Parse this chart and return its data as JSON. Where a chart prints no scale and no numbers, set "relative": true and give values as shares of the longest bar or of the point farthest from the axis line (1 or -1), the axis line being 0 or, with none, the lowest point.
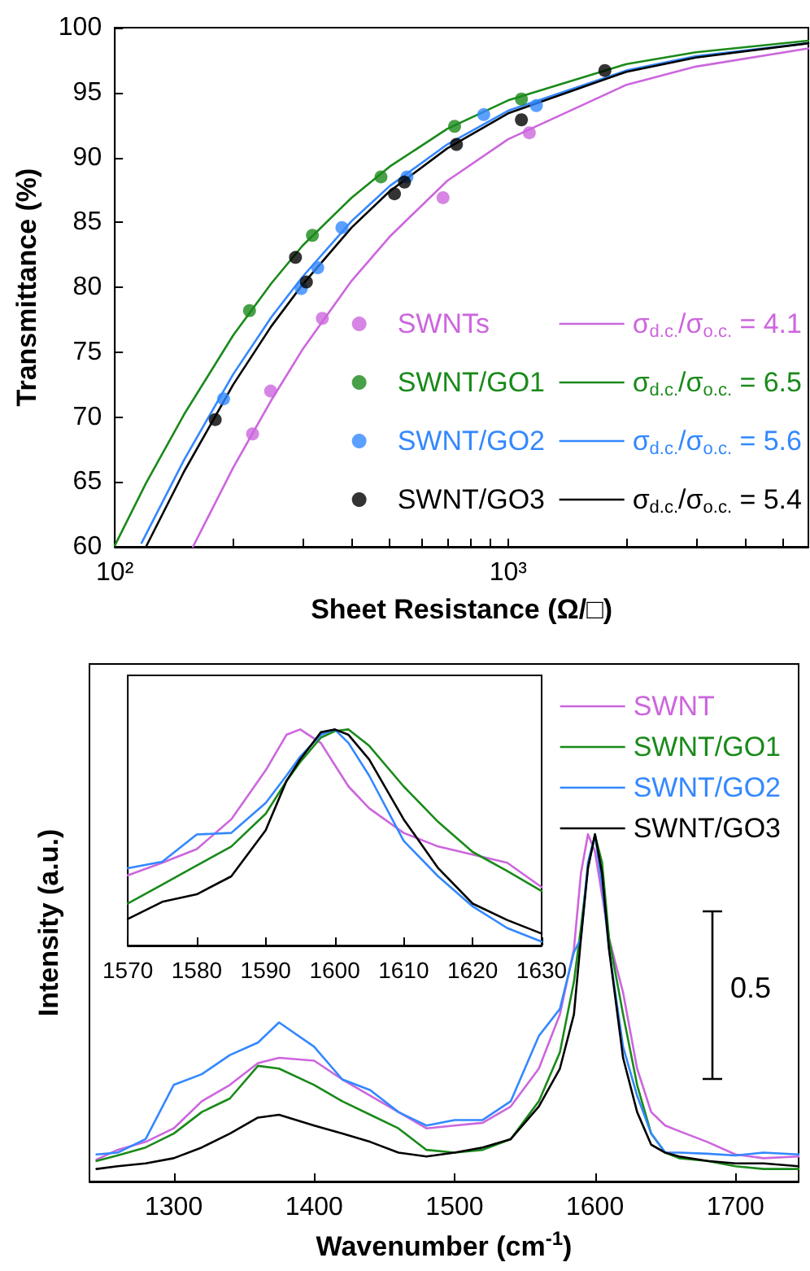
{
  "chart_data": [
    {
      "type": "scatter",
      "xlabel": "Sheet Resistance (Ω/□)",
      "ylabel": "Transmittance (%)",
      "log": "x",
      "xlim": [
        100,
        5800
      ],
      "xticks": [
        {
          "value": 100,
          "label": "10²"
        },
        {
          "value": 200,
          "label": null
        },
        {
          "value": 300,
          "label": null
        },
        {
          "value": 400,
          "label": null
        },
        {
          "value": 500,
          "label": null
        },
        {
          "value": 600,
          "label": null
        },
        {
          "value": 700,
          "label": null
        },
        {
          "value": 800,
          "label": null
        },
        {
          "value": 900,
          "label": null
        },
        {
          "value": 1000,
          "label": "10³"
        },
        {
          "value": 2000,
          "label": null
        },
        {
          "value": 3000,
          "label": null
        },
        {
          "value": 4000,
          "label": null
        },
        {
          "value": 5000,
          "label": null
        }
      ],
      "ylim": [
        60,
        100
      ],
      "yticks": [
        60,
        65,
        70,
        75,
        80,
        85,
        90,
        95,
        100
      ],
      "legend": "bottom right",
      "marker": "circle",
      "series": [
        {
          "name": "SWNTs",
          "color": "#cc66dd",
          "x": [
            224,
            249,
            337,
            683,
            1132
          ],
          "values": [
            68.7,
            72.0,
            77.6,
            86.9,
            91.9
          ]
        },
        {
          "name": "SWNT/GO1",
          "color": "#1a8a1a",
          "x": [
            220,
            318,
            475,
            731,
            1081
          ],
          "values": [
            78.2,
            84.0,
            88.5,
            92.4,
            94.5
          ]
        },
        {
          "name": "SWNT/GO2",
          "color": "#3388ff",
          "x": [
            189,
            298,
            328,
            378,
            553,
            867,
            1180
          ],
          "values": [
            71.4,
            79.9,
            81.5,
            84.6,
            88.5,
            93.3,
            94.0
          ]
        },
        {
          "name": "SWNT/GO3",
          "color": "#000000",
          "x": [
            180,
            288,
            307,
            514,
            545,
            739,
            1081,
            1762
          ],
          "values": [
            69.8,
            82.3,
            80.4,
            87.2,
            88.1,
            91.0,
            92.9,
            96.7
          ]
        },
        {
          "type": "line",
          "marker": "none",
          "name": "σ$_{d.c.}$/σ$_{o.c.}$ = 4.1",
          "color": "#cc66dd",
          "x": [
            158,
            200,
            250,
            300,
            400,
            500,
            700,
            1000,
            2000,
            3000,
            5800
          ],
          "values": [
            60.0,
            66.1,
            71.3,
            75.2,
            80.5,
            83.9,
            88.2,
            91.4,
            95.6,
            97.0,
            98.4
          ]
        },
        {
          "type": "line",
          "marker": "none",
          "name": "σ$_{d.c.}$/σ$_{o.c.}$ = 6.5",
          "color": "#1a8a1a",
          "x": [
            100,
            120,
            150,
            200,
            250,
            300,
            400,
            500,
            700,
            1000,
            2000,
            3000,
            5800
          ],
          "values": [
            60.1,
            64.9,
            70.2,
            76.3,
            80.3,
            83.2,
            86.9,
            89.3,
            92.2,
            94.4,
            97.2,
            98.1,
            99.0
          ]
        },
        {
          "type": "line",
          "marker": "none",
          "name": "σ$_{d.c.}$/σ$_{o.c.}$ = 5.6",
          "color": "#3388ff",
          "x": [
            117,
            150,
            200,
            250,
            300,
            400,
            500,
            700,
            1000,
            2000,
            3000,
            5800
          ],
          "values": [
            60.3,
            66.7,
            73.3,
            77.7,
            80.8,
            85.1,
            87.8,
            91.0,
            93.6,
            96.7,
            97.8,
            98.8
          ]
        },
        {
          "type": "line",
          "marker": "none",
          "name": "σ$_{d.c.}$/σ$_{o.c.}$ = 5.4",
          "color": "#000000",
          "x": [
            120,
            150,
            200,
            250,
            300,
            400,
            500,
            700,
            1000,
            2000,
            3000,
            5800
          ],
          "values": [
            60.0,
            65.8,
            72.5,
            77.0,
            80.2,
            84.6,
            87.4,
            90.7,
            93.4,
            96.6,
            97.7,
            98.8
          ]
        }
      ]
    },
    {
      "type": "line",
      "xlabel": "Wavenumber (cm$^{-1}$)",
      "ylabel": "Intensity (a.u.)",
      "relative": true,
      "xlim": [
        1240,
        1745
      ],
      "xticks": [
        1300,
        1400,
        1500,
        1600,
        1700
      ],
      "legend": "top right",
      "marker": "none",
      "annotations": [
        "0.5"
      ],
      "x": [
        1245,
        1260,
        1280,
        1300,
        1320,
        1340,
        1360,
        1375,
        1400,
        1420,
        1440,
        1460,
        1480,
        1500,
        1520,
        1540,
        1560,
        1575,
        1585,
        1590,
        1595,
        1600,
        1605,
        1610,
        1620,
        1630,
        1640,
        1650,
        1660,
        1680,
        1700,
        1720,
        1745
      ],
      "series": [
        {
          "name": "SWNT",
          "color": "#cc66dd",
          "values": [
            0.063,
            0.091,
            0.114,
            0.153,
            0.231,
            0.278,
            0.341,
            0.356,
            0.348,
            0.294,
            0.247,
            0.2,
            0.153,
            0.161,
            0.169,
            0.216,
            0.325,
            0.481,
            0.669,
            0.888,
            1.0,
            0.95,
            0.825,
            0.7,
            0.544,
            0.325,
            0.2,
            0.161,
            0.145,
            0.114,
            0.078,
            0.067,
            0.072
          ]
        },
        {
          "name": "SWNT/GO1",
          "color": "#1a8a1a",
          "values": [
            0.059,
            0.075,
            0.098,
            0.138,
            0.2,
            0.239,
            0.333,
            0.325,
            0.278,
            0.231,
            0.192,
            0.153,
            0.091,
            0.083,
            0.091,
            0.122,
            0.231,
            0.372,
            0.575,
            0.731,
            0.903,
            0.997,
            0.919,
            0.7,
            0.481,
            0.278,
            0.138,
            0.083,
            0.067,
            0.059,
            0.044,
            0.036,
            0.036
          ]
        },
        {
          "name": "SWNT/GO2",
          "color": "#3388ff",
          "values": [
            0.078,
            0.083,
            0.122,
            0.278,
            0.309,
            0.364,
            0.4,
            0.458,
            0.388,
            0.294,
            0.263,
            0.2,
            0.161,
            0.177,
            0.177,
            0.231,
            0.419,
            0.497,
            0.66,
            0.7,
            0.919,
            0.997,
            0.856,
            0.669,
            0.388,
            0.247,
            0.138,
            0.083,
            0.083,
            0.08,
            0.075,
            0.083,
            0.078
          ]
        },
        {
          "name": "SWNT/GO3",
          "color": "#000000",
          "values": [
            0.036,
            0.044,
            0.052,
            0.067,
            0.098,
            0.138,
            0.184,
            0.192,
            0.161,
            0.138,
            0.114,
            0.083,
            0.072,
            0.083,
            0.098,
            0.122,
            0.216,
            0.325,
            0.481,
            0.7,
            0.903,
            1.0,
            0.888,
            0.669,
            0.356,
            0.2,
            0.106,
            0.083,
            0.072,
            0.059,
            0.052,
            0.052,
            0.044
          ]
        }
      ]
    },
    {
      "type": "line",
      "relative": true,
      "xlim": [
        1570,
        1630
      ],
      "xticks": [
        1570,
        1580,
        1590,
        1600,
        1610,
        1620,
        1630
      ],
      "marker": "none",
      "x": [
        1570,
        1575,
        1580,
        1585,
        1590,
        1593,
        1595,
        1598,
        1600,
        1602,
        1605,
        1610,
        1615,
        1620,
        1625,
        1630
      ],
      "series": [
        {
          "color": "#cc66dd",
          "values": [
            0.325,
            0.383,
            0.446,
            0.584,
            0.811,
            0.975,
            1.0,
            0.937,
            0.836,
            0.736,
            0.635,
            0.521,
            0.458,
            0.421,
            0.383,
            0.27
          ]
        },
        {
          "color": "#1a8a1a",
          "values": [
            0.194,
            0.282,
            0.37,
            0.458,
            0.61,
            0.761,
            0.849,
            0.962,
            0.992,
            1.0,
            0.924,
            0.736,
            0.572,
            0.433,
            0.345,
            0.252
          ]
        },
        {
          "color": "#3388ff",
          "values": [
            0.358,
            0.388,
            0.514,
            0.521,
            0.66,
            0.786,
            0.874,
            0.975,
            1.0,
            0.937,
            0.786,
            0.484,
            0.32,
            0.181,
            0.081,
            0.018
          ]
        },
        {
          "color": "#000000",
          "values": [
            0.123,
            0.202,
            0.237,
            0.32,
            0.534,
            0.761,
            0.861,
            0.987,
            1.0,
            0.975,
            0.861,
            0.584,
            0.358,
            0.194,
            0.118,
            0.055
          ]
        }
      ]
    }
  ]
}
